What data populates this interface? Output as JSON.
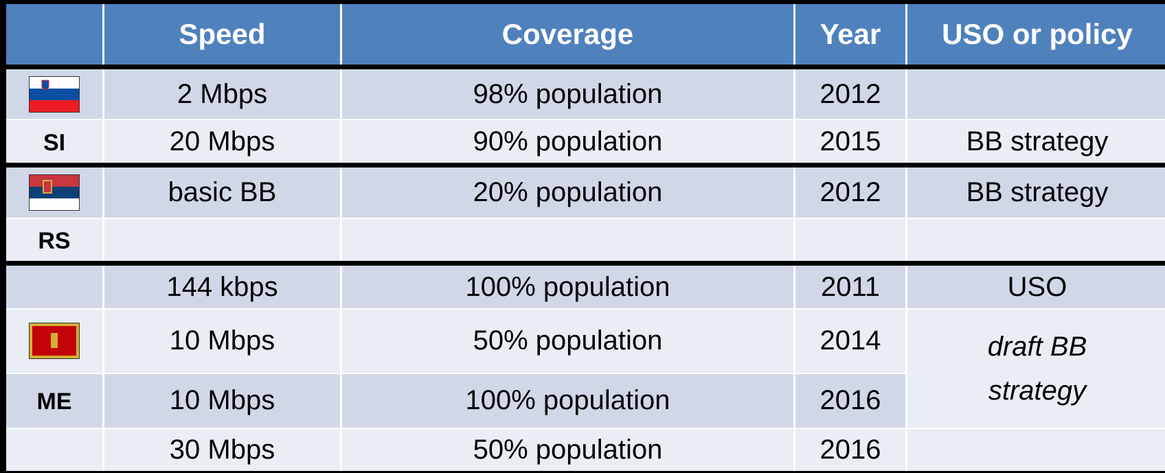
{
  "table": {
    "headers": [
      "",
      "Speed",
      "Coverage",
      "Year",
      "USO or policy"
    ],
    "groups": [
      {
        "code": "SI",
        "flag": "si",
        "rows": [
          {
            "speed": "2 Mbps",
            "coverage": "98% population",
            "year": 2012,
            "policy": ""
          },
          {
            "speed": "20 Mbps",
            "coverage": "90% population",
            "year": 2015,
            "policy": "BB strategy"
          }
        ]
      },
      {
        "code": "RS",
        "flag": "rs",
        "rows": [
          {
            "speed": "basic BB",
            "coverage": "20% population",
            "year": 2012,
            "policy": "BB strategy"
          },
          {
            "speed": "",
            "coverage": "",
            "year": "",
            "policy": ""
          }
        ]
      },
      {
        "code": "ME",
        "flag": "me",
        "rows": [
          {
            "speed": "144 kbps",
            "coverage": "100% population",
            "year": 2011,
            "policy": "USO"
          },
          {
            "speed": "10 Mbps",
            "coverage": "50% population",
            "year": 2014,
            "policy": "draft BB strategy",
            "policy_rowspan": 2,
            "italic": true
          },
          {
            "speed": "10 Mbps",
            "coverage": "100% population",
            "year": 2016
          },
          {
            "speed": "30 Mbps",
            "coverage": "50% population",
            "year": 2016,
            "policy": ""
          }
        ]
      }
    ]
  }
}
